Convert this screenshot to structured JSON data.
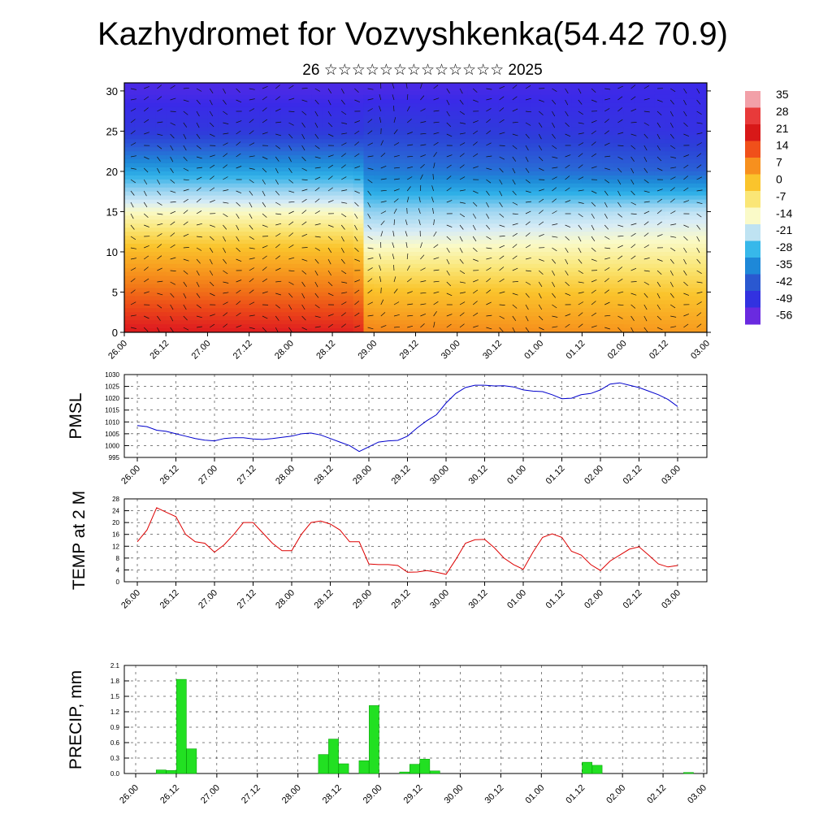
{
  "title": "Kazhydromet for Vozvyshkenka(54.42 70.9)",
  "subtitle": "26 ☆☆☆☆☆☆☆☆☆☆☆☆☆ 2025",
  "time_ticks": [
    "26.00",
    "26.12",
    "27.00",
    "27.12",
    "28.00",
    "28.12",
    "29.00",
    "29.12",
    "30.00",
    "30.12",
    "01.00",
    "01.12",
    "02.00",
    "02.12",
    "03.00"
  ],
  "chart_data": [
    {
      "type": "heatmap",
      "title": "",
      "xlabel": "",
      "ylabel": "",
      "ylim": [
        0,
        31
      ],
      "yticks": [
        0,
        5,
        10,
        15,
        20,
        25,
        30
      ],
      "colorbar_labels": [
        "35",
        "28",
        "21",
        "14",
        "7",
        "0",
        "-7",
        "-14",
        "-21",
        "-28",
        "-35",
        "-42",
        "-49",
        "-56"
      ],
      "colorbar_colors": [
        "#f2a0a8",
        "#e83a3a",
        "#d81818",
        "#f0501a",
        "#f7901e",
        "#fac42c",
        "#fae676",
        "#fafac8",
        "#bfe3f2",
        "#37b8ea",
        "#1e88d8",
        "#2a58d0",
        "#3232e0",
        "#6a2ae0"
      ],
      "temperature_profile_by_x": [
        {
          "x": 0,
          "surface": 30,
          "h15": -12,
          "h20": -30,
          "h25": -48,
          "h30": -54
        },
        {
          "x": 0.4,
          "surface": 28,
          "h15": -12,
          "h20": -30,
          "h25": -48,
          "h30": -54
        },
        {
          "x": 0.42,
          "surface": 12,
          "h15": -22,
          "h20": -36,
          "h25": -46,
          "h30": -54
        },
        {
          "x": 1.0,
          "surface": 8,
          "h15": -18,
          "h20": -40,
          "h25": -50,
          "h30": -52
        }
      ]
    },
    {
      "type": "line",
      "ylabel": "PMSL",
      "ylim": [
        995,
        1030
      ],
      "yticks": [
        995,
        1000,
        1005,
        1010,
        1015,
        1020,
        1025,
        1030
      ],
      "series": [
        {
          "color": "#0000cc",
          "x": [
            0,
            0.5,
            1,
            1.5,
            2,
            2.5,
            3,
            3.5,
            4,
            4.5,
            5,
            5.5,
            6,
            6.5,
            7,
            7.5,
            8,
            8.5,
            9,
            9.5,
            10,
            10.5,
            11,
            11.5,
            12,
            12.5,
            13,
            13.5,
            14,
            14.5,
            15,
            15.5,
            16,
            16.5,
            17,
            17.5,
            18,
            18.5,
            19,
            19.5,
            20,
            20.5,
            21,
            21.5,
            22,
            22.5,
            23,
            23.5,
            24,
            24.5,
            25,
            25.5,
            26,
            26.5,
            27,
            27.5,
            28
          ],
          "values": [
            1008.5,
            1008,
            1006.5,
            1006,
            1005,
            1004,
            1003,
            1002.3,
            1002,
            1003,
            1003.3,
            1003.3,
            1002.8,
            1002.6,
            1003,
            1003.5,
            1004,
            1005,
            1005.3,
            1004.5,
            1003,
            1001.5,
            1000,
            997.5,
            999.5,
            1001.5,
            1002,
            1002.2,
            1004,
            1007.5,
            1010.5,
            1013,
            1018,
            1022,
            1024.5,
            1025.5,
            1025.5,
            1025.2,
            1025.3,
            1024.8,
            1023.5,
            1023,
            1022.8,
            1021.5,
            1019.8,
            1020,
            1021.5,
            1022,
            1023.5,
            1026,
            1026.5,
            1025.5,
            1024.5,
            1023,
            1021.5,
            1019.5,
            1016.5
          ]
        }
      ]
    },
    {
      "type": "line",
      "ylabel": "TEMP at 2 M",
      "ylim": [
        0,
        28
      ],
      "yticks": [
        0,
        4,
        8,
        12,
        16,
        20,
        24,
        28
      ],
      "series": [
        {
          "color": "#dd0000",
          "x": [
            0,
            0.5,
            1,
            1.5,
            2,
            2.5,
            3,
            3.5,
            4,
            4.5,
            5,
            5.5,
            6,
            6.5,
            7,
            7.5,
            8,
            8.5,
            9,
            9.5,
            10,
            10.5,
            11,
            11.5,
            12,
            12.5,
            13,
            13.5,
            14,
            14.5,
            15,
            15.5,
            16,
            16.5,
            17,
            17.5,
            18,
            18.5,
            19,
            19.5,
            20,
            20.5,
            21,
            21.5,
            22,
            22.5,
            23,
            23.5,
            24,
            24.5,
            25,
            25.5,
            26,
            26.5,
            27,
            27.5,
            28
          ],
          "values": [
            13.5,
            17.5,
            25,
            23.5,
            22,
            16,
            13.5,
            13,
            10,
            12.5,
            16,
            20,
            20,
            16.5,
            13,
            10.5,
            10.5,
            16,
            20,
            20.5,
            19.5,
            17.5,
            13.5,
            13.5,
            6,
            5.8,
            5.8,
            5.5,
            3.2,
            3.3,
            3.8,
            3.2,
            2.5,
            7.5,
            13,
            14.2,
            14.3,
            11.5,
            8,
            5.8,
            4.2,
            10,
            15,
            16.2,
            15,
            10.3,
            9,
            5.8,
            3.8,
            7,
            9,
            11,
            11.8,
            9,
            6,
            5,
            5.5
          ]
        }
      ]
    },
    {
      "type": "bar",
      "ylabel": "PRECIP, mm",
      "ylim": [
        0,
        2.1
      ],
      "yticks": [
        "0.0",
        "0.3",
        "0.6",
        "0.9",
        "1.2",
        "1.5",
        "1.8",
        "2.1"
      ],
      "bar_color": "#22e022",
      "x": [
        1.5,
        2,
        2.5,
        3,
        3.5,
        9.5,
        10,
        10.5,
        11.5,
        12,
        13.5,
        14,
        14.5,
        15,
        22.5,
        23,
        27.5
      ],
      "values": [
        0.07,
        0.06,
        1.83,
        0.48,
        0.0,
        0.37,
        0.67,
        0.19,
        0.25,
        1.32,
        0.03,
        0.18,
        0.28,
        0.05,
        0.22,
        0.16,
        0.02
      ]
    }
  ]
}
